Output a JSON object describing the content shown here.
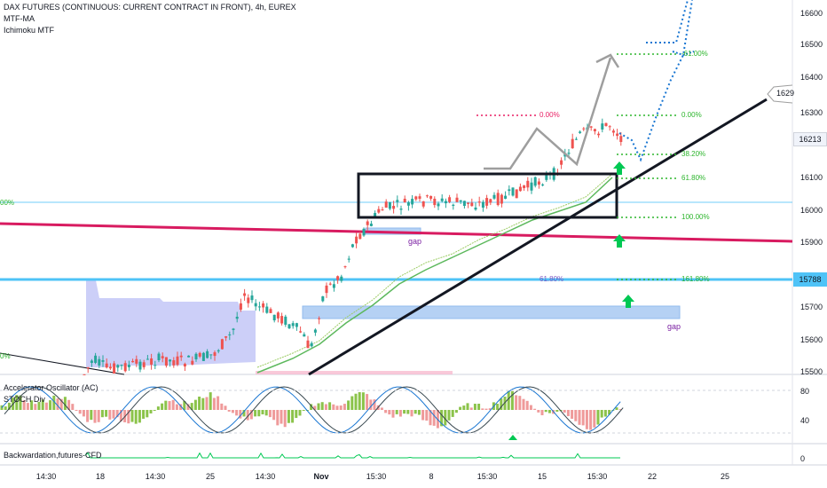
{
  "chart_header": {
    "symbol_title": "DAX FUTURES (CONTINUOUS: CURRENT CONTRACT IN FRONT), 4h, EUREX",
    "indicator_1": "MTF-MA",
    "indicator_2": "Ichimoku MTF"
  },
  "price_axis": {
    "ticks": [
      "16600",
      "16500",
      "16400",
      "16300",
      "16100",
      "16000",
      "15900",
      "15700",
      "15600",
      "15500"
    ],
    "current_price": "16213",
    "level_15788": "15788",
    "callout_label": "1629",
    "current_price_color": "#f0f3fa",
    "level_color": "#4fc3f7"
  },
  "annotations": {
    "fib_0_red": "0.00%",
    "fib_m61": "-61.00%",
    "fib_0_green": "0.00%",
    "fib_38": "38.20%",
    "fib_61": "61.80%",
    "fib_100": "100.00%",
    "fib_161": "161.80%",
    "fib_61_blue": "61.80%",
    "fib_100_left": "00%",
    "fib_0_left": "0%",
    "gap_upper": "gap",
    "gap_lower": "gap"
  },
  "pane_accel": {
    "title": "Accelerator Oscillator (AC)",
    "subtitle": "STOCH Div",
    "ticks": [
      "80",
      "40"
    ]
  },
  "pane_back": {
    "title": "Backwardation,futures-CFD",
    "ticks": [
      "0"
    ]
  },
  "time_axis": {
    "labels": [
      "14:30",
      "18",
      "14:30",
      "25",
      "14:30",
      "Nov",
      "15:30",
      "8",
      "15:30",
      "15",
      "15:30",
      "22",
      "25"
    ]
  },
  "colors": {
    "bull": "#26a69a",
    "bear": "#ef5350",
    "trend": "#131722",
    "resistance": "#d81b60",
    "support_blue": "#4fc3f7",
    "fib_green": "#2db52d",
    "projection_blue": "#1976d2",
    "projection_gray": "#9e9e9e",
    "cloud": "#b3b8f5",
    "gap_fill": "#a9c9f3"
  }
}
